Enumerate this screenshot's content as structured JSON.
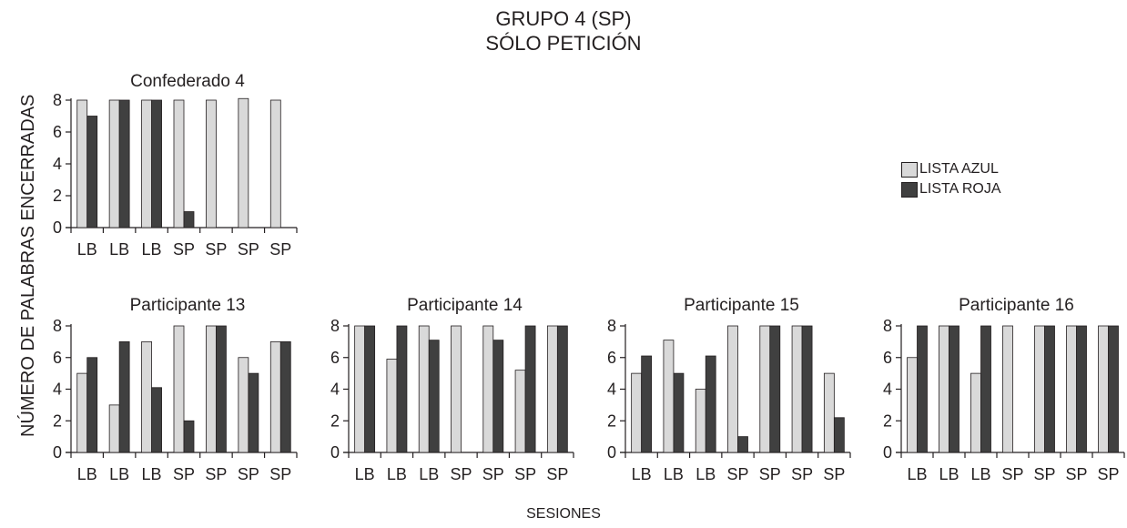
{
  "title": "GRUPO 4 (SP)",
  "subtitle": "SÓLO PETICIÓN",
  "ylabel": "NÚMERO DE PALABRAS ENCERRADAS",
  "xlabel": "SESIONES",
  "legend": [
    {
      "name": "LISTA AZUL",
      "color": "#d9d9d9"
    },
    {
      "name": "LISTA ROJA",
      "color": "#404040"
    }
  ],
  "chart_data": [
    {
      "type": "bar",
      "title": "Confederado 4",
      "categories": [
        "LB",
        "LB",
        "LB",
        "SP",
        "SP",
        "SP",
        "SP"
      ],
      "ylim": [
        0,
        8
      ],
      "yticks": [
        0,
        2,
        4,
        6,
        8
      ],
      "series": [
        {
          "name": "LISTA AZUL",
          "values": [
            8,
            8,
            8,
            8,
            8,
            8.1,
            8
          ]
        },
        {
          "name": "LISTA ROJA",
          "values": [
            7,
            8,
            8,
            1,
            0,
            0,
            0
          ]
        }
      ]
    },
    {
      "type": "bar",
      "title": "Participante 13",
      "categories": [
        "LB",
        "LB",
        "LB",
        "SP",
        "SP",
        "SP",
        "SP"
      ],
      "ylim": [
        0,
        8
      ],
      "yticks": [
        0,
        2,
        4,
        6,
        8
      ],
      "series": [
        {
          "name": "LISTA AZUL",
          "values": [
            5,
            3,
            7,
            8,
            8,
            6,
            7
          ]
        },
        {
          "name": "LISTA ROJA",
          "values": [
            6,
            7,
            4.1,
            2,
            8,
            5,
            7
          ]
        }
      ]
    },
    {
      "type": "bar",
      "title": "Participante 14",
      "categories": [
        "LB",
        "LB",
        "LB",
        "SP",
        "SP",
        "SP",
        "SP"
      ],
      "ylim": [
        0,
        8
      ],
      "yticks": [
        0,
        2,
        4,
        6,
        8
      ],
      "series": [
        {
          "name": "LISTA AZUL",
          "values": [
            8,
            5.9,
            8,
            8,
            8,
            5.2,
            8
          ]
        },
        {
          "name": "LISTA ROJA",
          "values": [
            8,
            8,
            7.1,
            0,
            7.1,
            8,
            8
          ]
        }
      ]
    },
    {
      "type": "bar",
      "title": "Participante 15",
      "categories": [
        "LB",
        "LB",
        "LB",
        "SP",
        "SP",
        "SP",
        "SP"
      ],
      "ylim": [
        0,
        8
      ],
      "yticks": [
        0,
        2,
        4,
        6,
        8
      ],
      "series": [
        {
          "name": "LISTA AZUL",
          "values": [
            5,
            7.1,
            4,
            8,
            8,
            8,
            5
          ]
        },
        {
          "name": "LISTA ROJA",
          "values": [
            6.1,
            5,
            6.1,
            1,
            8,
            8,
            2.2
          ]
        }
      ]
    },
    {
      "type": "bar",
      "title": "Participante 16",
      "categories": [
        "LB",
        "LB",
        "LB",
        "SP",
        "SP",
        "SP",
        "SP"
      ],
      "ylim": [
        0,
        8
      ],
      "yticks": [
        0,
        2,
        4,
        6,
        8
      ],
      "series": [
        {
          "name": "LISTA AZUL",
          "values": [
            6,
            8,
            5,
            8,
            8,
            8,
            8
          ]
        },
        {
          "name": "LISTA ROJA",
          "values": [
            8,
            8,
            8,
            0,
            8,
            8,
            8
          ]
        }
      ]
    }
  ]
}
